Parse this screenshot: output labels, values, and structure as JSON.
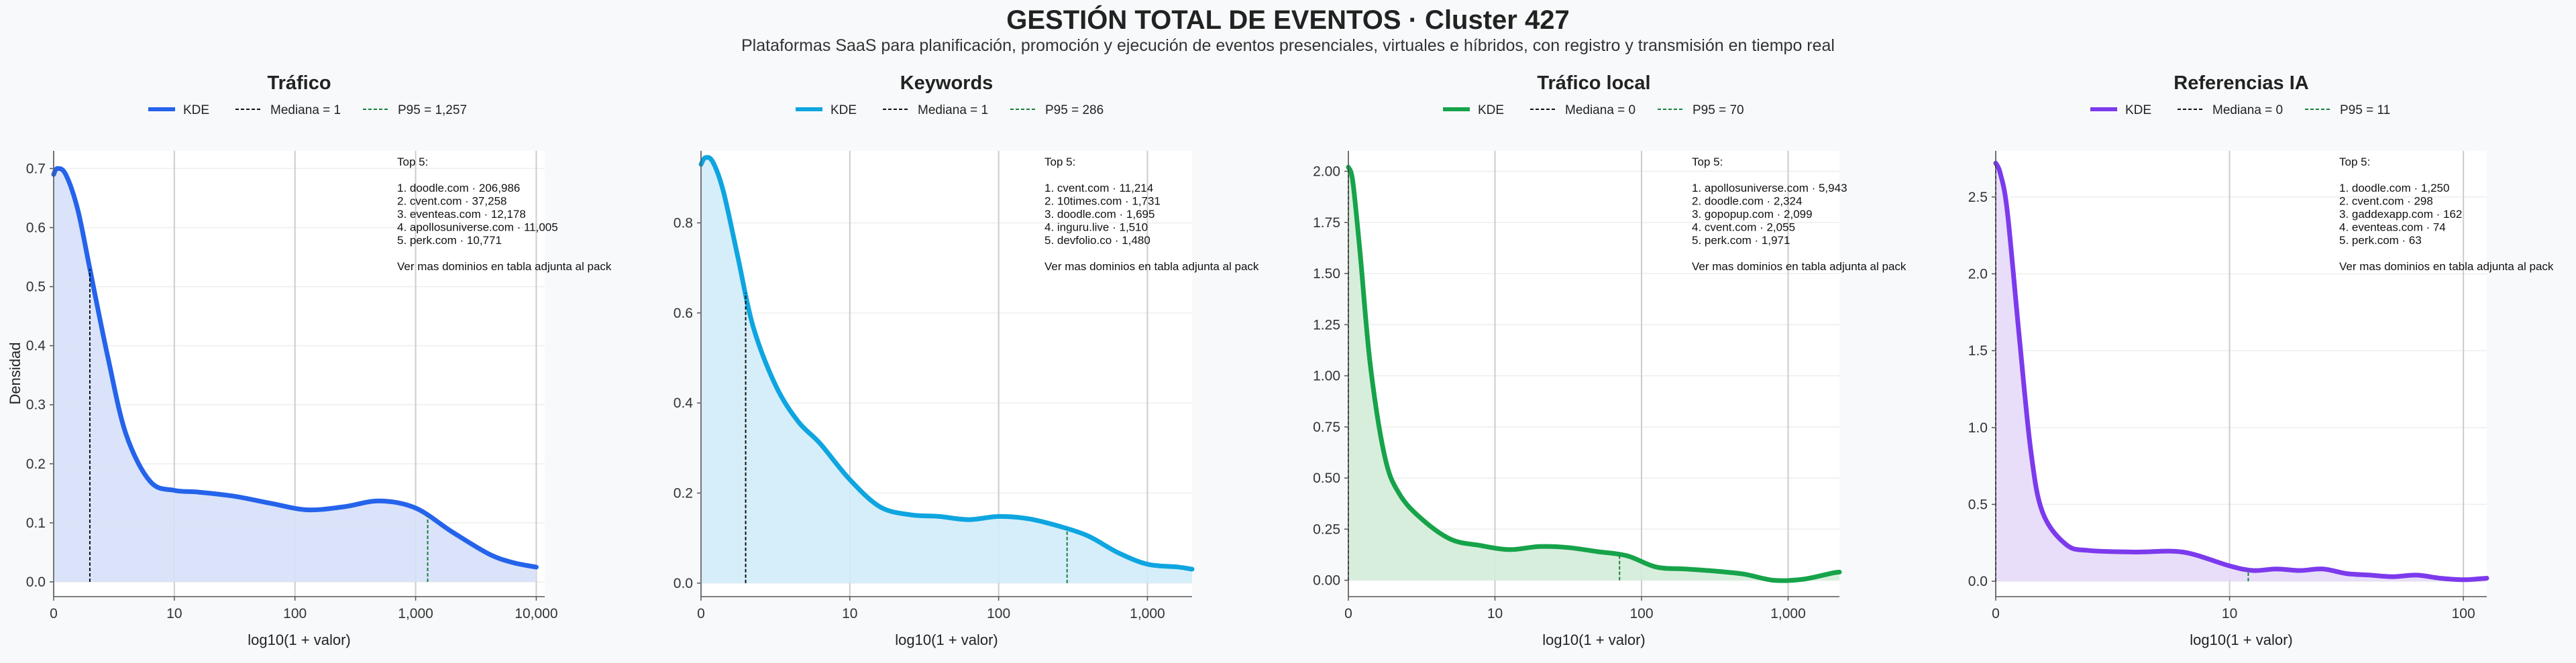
{
  "figure": {
    "title": "GESTIÓN TOTAL DE EVENTOS · Cluster 427",
    "subtitle": "Plataformas SaaS para planificación, promoción y ejecución de eventos presenciales, virtuales e híbridos, con registro y transmisión en tiempo real",
    "ylabel": "Densidad"
  },
  "chart_data": [
    {
      "type": "area",
      "title": "Tráfico",
      "xlabel": "log10(1 + valor)",
      "ylabel": "Densidad",
      "color": "#2563eb",
      "fill": "#d6e0f8",
      "xlim": [
        0,
        4.07
      ],
      "ylim": [
        -0.025,
        0.73
      ],
      "xticks": [
        0,
        1,
        2,
        3,
        4
      ],
      "xtick_labels": [
        "0",
        "10",
        "100",
        "1,000",
        "10,000"
      ],
      "yticks": [
        0.0,
        0.1,
        0.2,
        0.3,
        0.4,
        0.5,
        0.6,
        0.7
      ],
      "ytick_labels": [
        "0.0",
        "0.1",
        "0.2",
        "0.3",
        "0.4",
        "0.5",
        "0.6",
        "0.7"
      ],
      "legend": {
        "kde": "KDE",
        "median": "Mediana = 1",
        "p95": "P95 = 1,257"
      },
      "median_x": 0.3,
      "p95_x": 3.1,
      "x": [
        0,
        0.03,
        0.1,
        0.2,
        0.3,
        0.45,
        0.6,
        0.8,
        1.0,
        1.2,
        1.5,
        1.8,
        2.1,
        2.4,
        2.7,
        3.0,
        3.3,
        3.6,
        3.8,
        4.0
      ],
      "y": [
        0.69,
        0.7,
        0.69,
        0.63,
        0.53,
        0.38,
        0.25,
        0.17,
        0.155,
        0.152,
        0.145,
        0.133,
        0.122,
        0.127,
        0.137,
        0.125,
        0.085,
        0.048,
        0.033,
        0.025
      ],
      "annotation": [
        "Top 5:",
        "",
        "1. doodle.com · 206,986",
        "2. cvent.com · 37,258",
        "3. eventeas.com · 12,178",
        "4. apollosuniverse.com · 11,005",
        "5. perk.com · 10,771",
        "",
        "Ver mas dominios en tabla adjunta al pack"
      ]
    },
    {
      "type": "area",
      "title": "Keywords",
      "xlabel": "log10(1 + valor)",
      "ylabel": "",
      "color": "#0ea5e0",
      "fill": "#d2ecf8",
      "xlim": [
        0,
        3.3
      ],
      "ylim": [
        -0.03,
        0.96
      ],
      "xticks": [
        0,
        1,
        2,
        3
      ],
      "xtick_labels": [
        "0",
        "10",
        "100",
        "1,000"
      ],
      "yticks": [
        0.0,
        0.2,
        0.4,
        0.6,
        0.8
      ],
      "ytick_labels": [
        "0.0",
        "0.2",
        "0.4",
        "0.6",
        "0.8"
      ],
      "legend": {
        "kde": "KDE",
        "median": "Mediana = 1",
        "p95": "P95 = 286"
      },
      "median_x": 0.3,
      "p95_x": 2.46,
      "x": [
        0,
        0.03,
        0.08,
        0.15,
        0.25,
        0.35,
        0.5,
        0.65,
        0.8,
        1.0,
        1.2,
        1.4,
        1.6,
        1.8,
        2.0,
        2.2,
        2.4,
        2.6,
        2.8,
        3.0,
        3.2,
        3.3
      ],
      "y": [
        0.93,
        0.945,
        0.935,
        0.87,
        0.72,
        0.57,
        0.44,
        0.36,
        0.31,
        0.23,
        0.17,
        0.152,
        0.148,
        0.141,
        0.148,
        0.143,
        0.127,
        0.105,
        0.068,
        0.042,
        0.036,
        0.031
      ],
      "annotation": [
        "Top 5:",
        "",
        "1. cvent.com · 11,214",
        "2. 10times.com · 1,731",
        "3. doodle.com · 1,695",
        "4. inguru.live · 1,510",
        "5. devfolio.co · 1,480",
        "",
        "Ver mas dominios en tabla adjunta al pack"
      ]
    },
    {
      "type": "area",
      "title": "Tráfico local",
      "xlabel": "log10(1 + valor)",
      "ylabel": "",
      "color": "#16a34a",
      "fill": "#d4ecd9",
      "xlim": [
        0,
        3.35
      ],
      "ylim": [
        -0.08,
        2.1
      ],
      "xticks": [
        0,
        1,
        2,
        3
      ],
      "xtick_labels": [
        "0",
        "10",
        "100",
        "1,000"
      ],
      "yticks": [
        0.0,
        0.25,
        0.5,
        0.75,
        1.0,
        1.25,
        1.5,
        1.75,
        2.0
      ],
      "ytick_labels": [
        "0.00",
        "0.25",
        "0.50",
        "0.75",
        "1.00",
        "1.25",
        "1.50",
        "1.75",
        "2.00"
      ],
      "legend": {
        "kde": "KDE",
        "median": "Mediana = 0",
        "p95": "P95 = 70"
      },
      "median_x": 0,
      "p95_x": 1.85,
      "x": [
        0,
        0.03,
        0.08,
        0.15,
        0.25,
        0.35,
        0.5,
        0.7,
        0.9,
        1.1,
        1.3,
        1.5,
        1.7,
        1.9,
        2.1,
        2.3,
        2.5,
        2.7,
        2.9,
        3.1,
        3.3,
        3.35
      ],
      "y": [
        2.02,
        1.95,
        1.6,
        1.05,
        0.6,
        0.42,
        0.3,
        0.2,
        0.17,
        0.15,
        0.165,
        0.16,
        0.14,
        0.12,
        0.065,
        0.055,
        0.045,
        0.03,
        0.0,
        0.005,
        0.035,
        0.04
      ],
      "annotation": [
        "Top 5:",
        "",
        "1. apollosuniverse.com · 5,943",
        "2. doodle.com · 2,324",
        "3. gopopup.com · 2,099",
        "4. cvent.com · 2,055",
        "5. perk.com · 1,971",
        "",
        "Ver mas dominios en tabla adjunta al pack"
      ]
    },
    {
      "type": "area",
      "title": "Referencias IA",
      "xlabel": "log10(1 + valor)",
      "ylabel": "",
      "color": "#7c3aed",
      "fill": "#e6daf8",
      "xlim": [
        0,
        2.1
      ],
      "ylim": [
        -0.1,
        2.8
      ],
      "xticks": [
        0,
        1,
        2
      ],
      "xtick_labels": [
        "0",
        "10",
        "100"
      ],
      "yticks": [
        0.0,
        0.5,
        1.0,
        1.5,
        2.0,
        2.5
      ],
      "ytick_labels": [
        "0.0",
        "0.5",
        "1.0",
        "1.5",
        "2.0",
        "2.5"
      ],
      "legend": {
        "kde": "KDE",
        "median": "Mediana = 0",
        "p95": "P95 = 11"
      },
      "median_x": 0,
      "p95_x": 1.08,
      "x": [
        0,
        0.02,
        0.05,
        0.1,
        0.15,
        0.2,
        0.3,
        0.4,
        0.6,
        0.8,
        1.0,
        1.1,
        1.2,
        1.3,
        1.4,
        1.5,
        1.6,
        1.7,
        1.8,
        1.9,
        2.0,
        2.1
      ],
      "y": [
        2.72,
        2.65,
        2.4,
        1.6,
        0.85,
        0.45,
        0.24,
        0.2,
        0.19,
        0.19,
        0.1,
        0.07,
        0.08,
        0.07,
        0.08,
        0.05,
        0.04,
        0.03,
        0.04,
        0.02,
        0.01,
        0.02
      ],
      "annotation": [
        "Top 5:",
        "",
        "1. doodle.com · 1,250",
        "2. cvent.com · 298",
        "3. gaddexapp.com · 162",
        "4. eventeas.com · 74",
        "5. perk.com · 63",
        "",
        "Ver mas dominios en tabla adjunta al pack"
      ]
    }
  ]
}
